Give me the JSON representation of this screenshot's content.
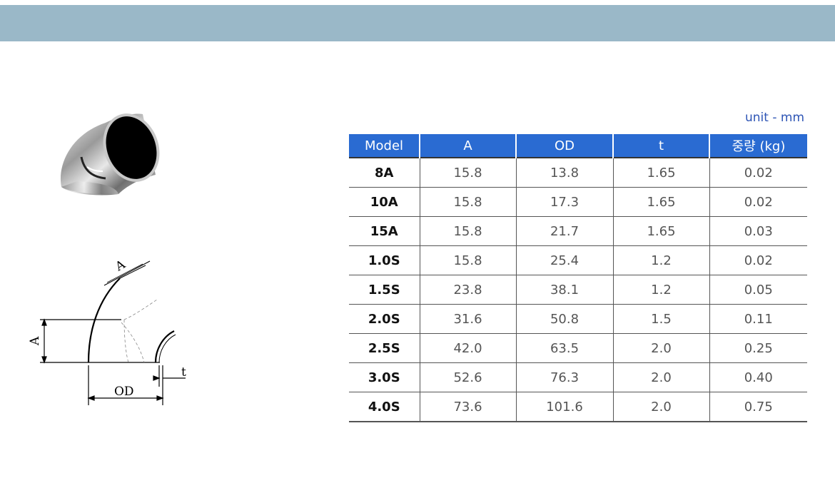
{
  "unit_note": "unit - mm",
  "table": {
    "headers": [
      "Model",
      "A",
      "OD",
      "t",
      "중량 (kg)"
    ],
    "rows": [
      [
        "8A",
        "15.8",
        "13.8",
        "1.65",
        "0.02"
      ],
      [
        "10A",
        "15.8",
        "17.3",
        "1.65",
        "0.02"
      ],
      [
        "15A",
        "15.8",
        "21.7",
        "1.65",
        "0.03"
      ],
      [
        "1.0S",
        "15.8",
        "25.4",
        "1.2",
        "0.02"
      ],
      [
        "1.5S",
        "23.8",
        "38.1",
        "1.2",
        "0.05"
      ],
      [
        "2.0S",
        "31.6",
        "50.8",
        "1.5",
        "0.11"
      ],
      [
        "2.5S",
        "42.0",
        "63.5",
        "2.0",
        "0.25"
      ],
      [
        "3.0S",
        "52.6",
        "76.3",
        "2.0",
        "0.40"
      ],
      [
        "4.0S",
        "73.6",
        "101.6",
        "2.0",
        "0.75"
      ]
    ]
  },
  "drawing": {
    "label_a_top": "A",
    "label_a_left": "A",
    "label_od": "OD",
    "label_t": "t"
  },
  "colors": {
    "top_band": "#9ab8c8",
    "header_blue": "#2a6bd2",
    "unit_text": "#2e55b5"
  }
}
